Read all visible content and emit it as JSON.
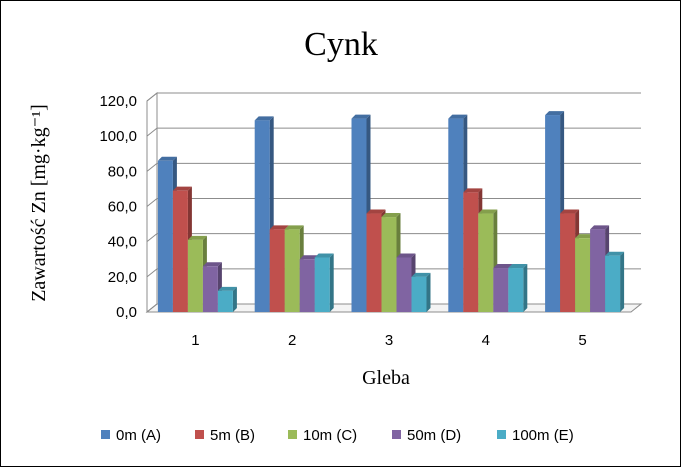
{
  "chart_data": {
    "type": "bar",
    "title": "Cynk",
    "xlabel": "Gleba",
    "ylabel": "Zawartość Zn [mg·kg⁻¹]",
    "categories": [
      "1",
      "2",
      "3",
      "4",
      "5"
    ],
    "ylim": [
      0,
      120
    ],
    "yticks": [
      "0,0",
      "20,0",
      "40,0",
      "60,0",
      "80,0",
      "100,0",
      "120,0"
    ],
    "grid": true,
    "legend": "bottom",
    "series": [
      {
        "name": "0m (A)",
        "color": "#4F81BD",
        "values": [
          86,
          109,
          110,
          110,
          112
        ]
      },
      {
        "name": "5m (B)",
        "color": "#C0504D",
        "values": [
          69,
          47,
          56,
          68,
          56
        ]
      },
      {
        "name": "10m (C)",
        "color": "#9BBB59",
        "values": [
          41,
          47,
          54,
          56,
          42
        ]
      },
      {
        "name": "50m (D)",
        "color": "#8064A2",
        "values": [
          26,
          30,
          31,
          25,
          47
        ]
      },
      {
        "name": "100m (E)",
        "color": "#4BACC6",
        "values": [
          12,
          31,
          20,
          25,
          32
        ]
      }
    ]
  }
}
